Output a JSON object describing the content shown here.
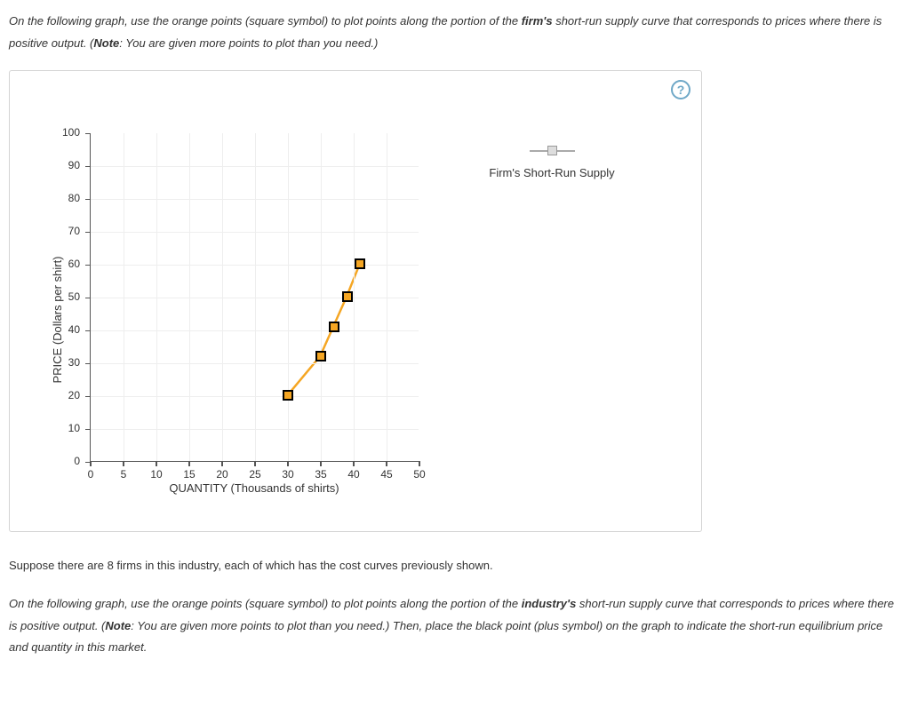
{
  "instruction1": {
    "pre": "On the following graph, use the orange points (square symbol) to plot points along the portion of the ",
    "bold": "firm's",
    "post": " short-run supply curve that corresponds to prices where there is positive output. (",
    "note_label": "Note",
    "note_text": ": You are given more points to plot than you need.)"
  },
  "help_icon": "?",
  "chart": {
    "type": "line-scatter",
    "xlim": [
      0,
      50
    ],
    "ylim": [
      0,
      100
    ],
    "xtick_step": 5,
    "ytick_step": 10,
    "xlabel": "QUANTITY (Thousands of shirts)",
    "ylabel": "PRICE (Dollars per shirt)",
    "grid_color": "#eeeeee",
    "axis_color": "#555555",
    "background_color": "#ffffff",
    "series": {
      "label": "Firm's Short-Run Supply",
      "line_color": "#f5a623",
      "line_width": 2.5,
      "marker_fill": "#f5a623",
      "marker_border": "#000000",
      "marker_size": 12,
      "marker_shape": "square",
      "points": [
        {
          "x": 30,
          "y": 20
        },
        {
          "x": 35,
          "y": 32
        },
        {
          "x": 37,
          "y": 41
        },
        {
          "x": 39,
          "y": 50
        },
        {
          "x": 41,
          "y": 60
        }
      ]
    },
    "legend_marker": {
      "line_color": "#aaaaaa",
      "square_fill": "#dddddd",
      "square_border": "#999999"
    }
  },
  "middle_text": "Suppose there are 8 firms in this industry, each of which has the cost curves previously shown.",
  "instruction2": {
    "pre": "On the following graph, use the orange points (square symbol) to plot points along the portion of the ",
    "bold": "industry's",
    "post": " short-run supply curve that corresponds to prices where there is positive output. (",
    "note_label": "Note",
    "note_text": ": You are given more points to plot than you need.) Then, place the black point (plus symbol) on the graph to indicate the short-run equilibrium price and quantity in this market."
  }
}
